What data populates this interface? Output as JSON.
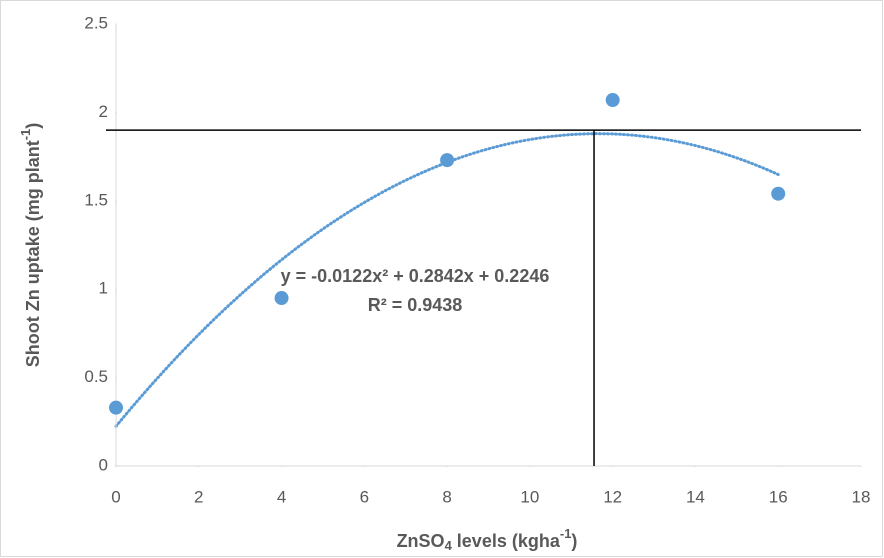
{
  "chart_data": {
    "type": "scatter",
    "x_label_parts": [
      "ZnSO",
      "4",
      " levels (kgha",
      "-1",
      ")"
    ],
    "y_label_parts": [
      "Shoot Zn uptake (mg plant",
      "-1",
      ")"
    ],
    "series": [
      {
        "name": "Shoot Zn uptake",
        "color": "#5b9bd5",
        "x": [
          0,
          4,
          8,
          12,
          16
        ],
        "values": [
          0.33,
          0.95,
          1.73,
          2.07,
          1.54
        ]
      }
    ],
    "trendline": {
      "type": "polynomial",
      "equation": "y = -0.0122x² + 0.2842x + 0.2246",
      "r_squared": "R² = 0.9438",
      "coefficients": [
        -0.0122,
        0.2842,
        0.2246
      ],
      "xrange": [
        0,
        16
      ],
      "color": "#5b9bd5"
    },
    "reference_lines": {
      "y": 1.9,
      "x": 11.55
    },
    "xlim": [
      0,
      18
    ],
    "xticks": [
      0,
      2,
      4,
      6,
      8,
      10,
      12,
      14,
      16,
      18
    ],
    "ylim": [
      0,
      2.5
    ],
    "yticks": [
      0,
      0.5,
      1,
      1.5,
      2,
      2.5
    ],
    "grid": false
  }
}
